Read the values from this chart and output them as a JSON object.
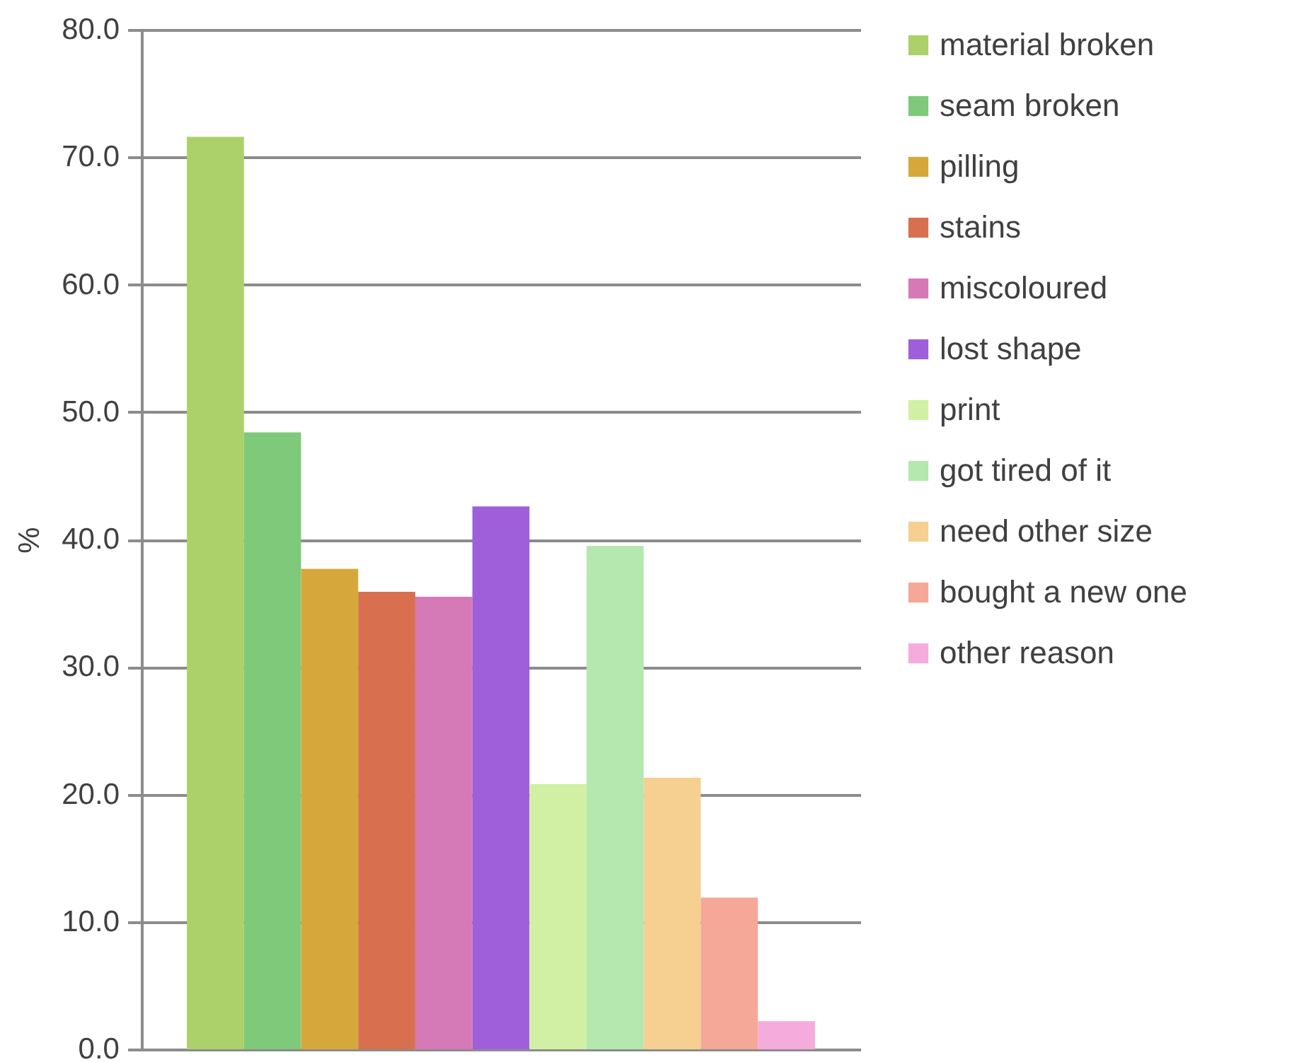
{
  "chart_data": {
    "type": "bar",
    "ylabel": "%",
    "categories": [
      null
    ],
    "series": [
      {
        "name": "material broken",
        "color": "#acd16a",
        "values": [
          71.6
        ]
      },
      {
        "name": "seam broken",
        "color": "#7fc97a",
        "values": [
          48.4
        ]
      },
      {
        "name": "pilling",
        "color": "#d6a83c",
        "values": [
          37.7
        ]
      },
      {
        "name": "stains",
        "color": "#d87050",
        "values": [
          35.9
        ]
      },
      {
        "name": "miscoloured",
        "color": "#d679b7",
        "values": [
          35.5
        ]
      },
      {
        "name": "lost shape",
        "color": "#9f5fda",
        "values": [
          42.6
        ]
      },
      {
        "name": "print",
        "color": "#d2f0a4",
        "values": [
          20.8
        ]
      },
      {
        "name": "got tired of it",
        "color": "#b4e8af",
        "values": [
          39.5
        ]
      },
      {
        "name": "need other size",
        "color": "#f5d090",
        "values": [
          21.3
        ]
      },
      {
        "name": "bought a new one",
        "color": "#f5a898",
        "values": [
          11.9
        ]
      },
      {
        "name": "other reason",
        "color": "#f5acdc",
        "values": [
          2.2
        ]
      }
    ],
    "ylim": [
      0,
      80
    ],
    "yticks": [
      {
        "value": 0,
        "label": "0.0"
      },
      {
        "value": 10,
        "label": "10.0"
      },
      {
        "value": 20,
        "label": "20.0"
      },
      {
        "value": 30,
        "label": "30.0"
      },
      {
        "value": 40,
        "label": "40.0"
      },
      {
        "value": 50,
        "label": "50.0"
      },
      {
        "value": 60,
        "label": "60.0"
      },
      {
        "value": 70,
        "label": "70.0"
      },
      {
        "value": 80,
        "label": "80.0"
      }
    ],
    "grid": "y",
    "legend": "right"
  }
}
